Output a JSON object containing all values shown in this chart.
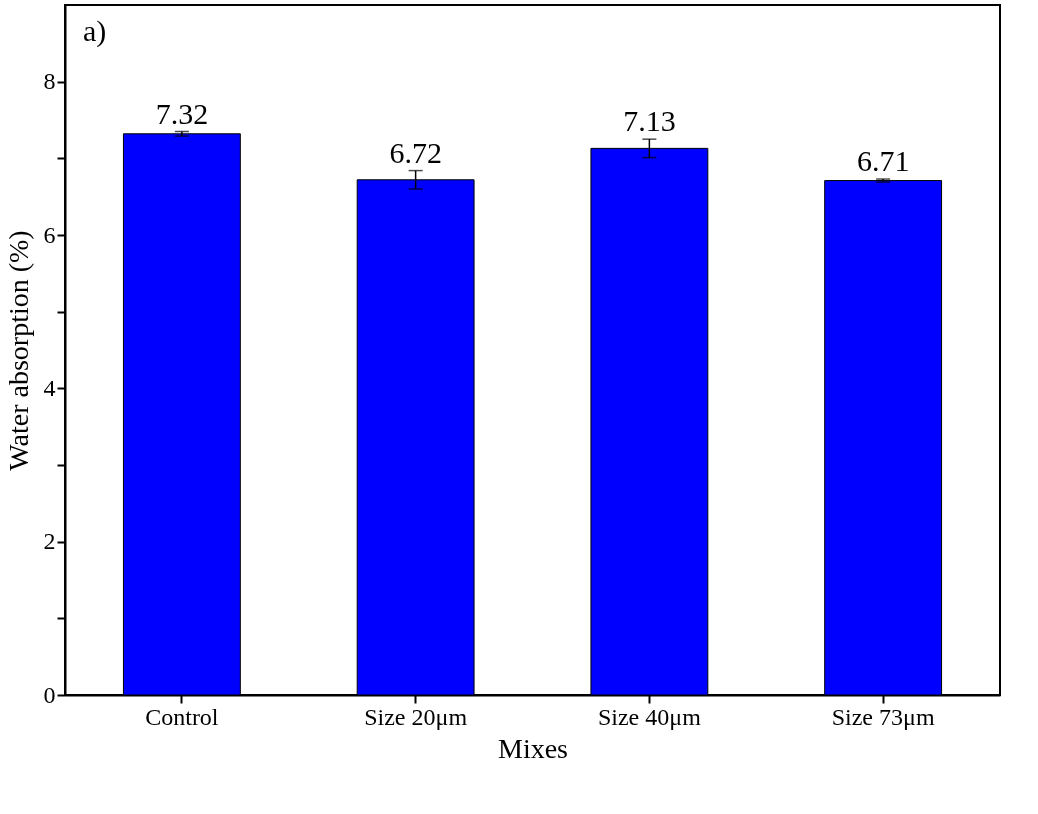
{
  "chart_data": {
    "type": "bar",
    "xlabel": "Mixes",
    "ylabel": "Water absorption (%)",
    "annotations": [
      "a)"
    ],
    "categories": [
      "Control",
      "Size 20μm",
      "Size 40μm",
      "Size 73μm"
    ],
    "values": [
      7.32,
      6.72,
      7.13,
      6.71
    ],
    "errors": [
      0.03,
      0.12,
      0.12,
      0.02
    ],
    "color": "#0000ff",
    "data_labels": true,
    "ylim": [
      0,
      9
    ],
    "yticks": [
      0,
      {
        "value": 1,
        "label": null
      },
      2,
      {
        "value": 3,
        "label": null
      },
      4,
      {
        "value": 5,
        "label": null
      },
      6,
      {
        "value": 7,
        "label": null
      },
      8
    ],
    "grid": false
  }
}
